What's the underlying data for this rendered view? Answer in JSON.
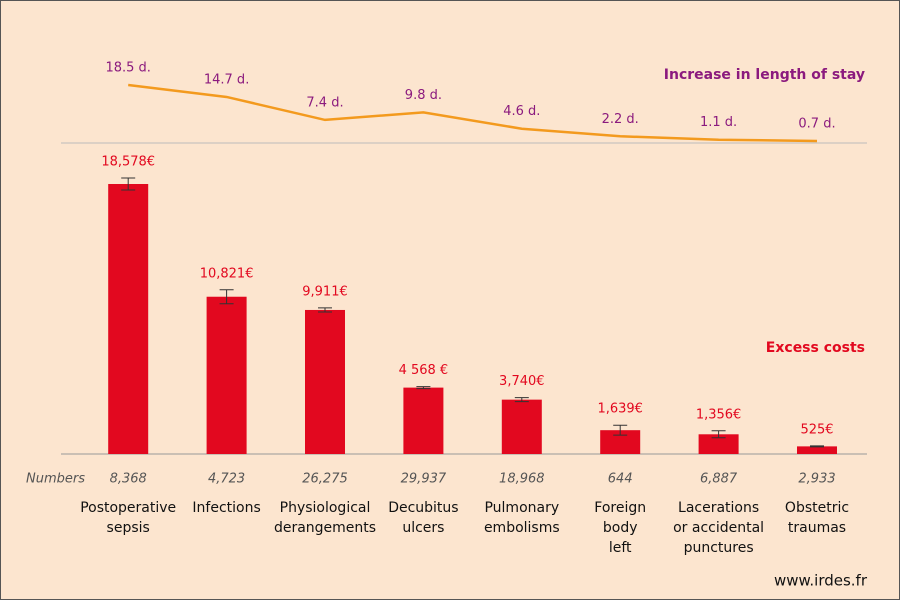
{
  "chart_data": {
    "type": "bar",
    "categories": [
      "Postoperative\nsepsis",
      "Infections",
      "Physiological\nderangements",
      "Decubitus\nulcers",
      "Pulmonary\nembolisms",
      "Foreign\nbody\nleft",
      "Lacerations\nor accidental\npunctures",
      "Obstetric\ntraumas"
    ],
    "series": [
      {
        "name": "Excess costs",
        "type": "bar",
        "color": "#e2081f",
        "values": [
          18578,
          10821,
          9911,
          4568,
          3740,
          1639,
          1356,
          525
        ],
        "value_labels": [
          "18,578€",
          "10,821€",
          "9,911€",
          "4 568 €",
          "3,740€",
          "1,639€",
          "1,356€",
          "525€"
        ],
        "errors": [
          410,
          480,
          140,
          70,
          140,
          340,
          240,
          35
        ]
      },
      {
        "name": "Increase in length of stay",
        "type": "line",
        "color": "#f39a1e",
        "label_color": "#8b1a7e",
        "values": [
          18.5,
          14.7,
          7.4,
          9.8,
          4.6,
          2.2,
          1.1,
          0.7
        ],
        "value_labels": [
          "18.5 d.",
          "14.7 d.",
          "7.4 d.",
          "9.8 d.",
          "4.6 d.",
          "2.2 d.",
          "1.1 d.",
          "0.7 d."
        ]
      }
    ],
    "counts_label": "Numbers",
    "counts": [
      "8,368",
      "4,723",
      "26,275",
      "29,937",
      "18,968",
      "644",
      "6,887",
      "2,933"
    ],
    "source": "www.irdes.fr"
  }
}
